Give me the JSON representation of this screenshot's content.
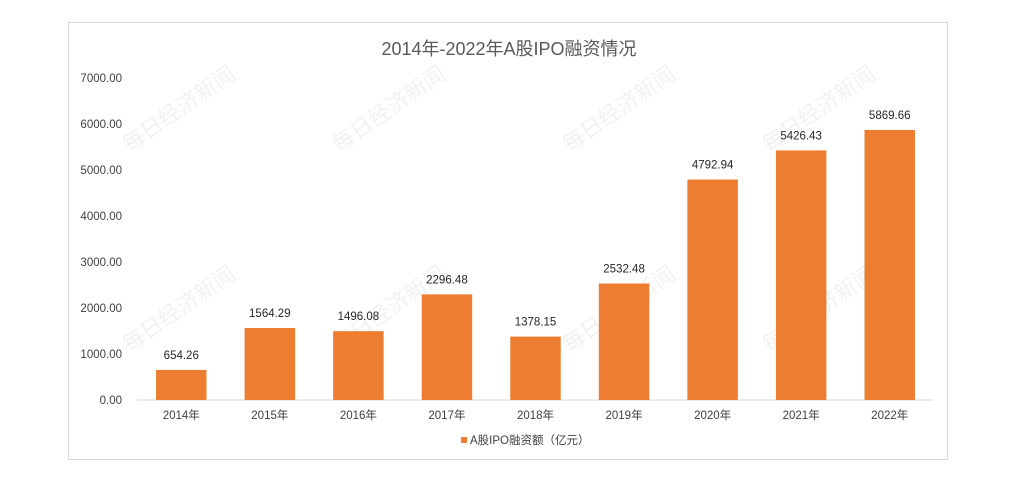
{
  "chart_data": {
    "type": "bar",
    "title": "2014年-2022年A股IPO融资情况",
    "categories": [
      "2014年",
      "2015年",
      "2016年",
      "2017年",
      "2018年",
      "2019年",
      "2020年",
      "2021年",
      "2022年"
    ],
    "series": [
      {
        "name": "A股IPO融资额（亿元）",
        "values": [
          654.26,
          1564.29,
          1496.08,
          2296.48,
          1378.15,
          2532.48,
          4792.94,
          5426.43,
          5869.66
        ],
        "labels": [
          "654.26",
          "1564.29",
          "1496.08",
          "2296.48",
          "1378.15",
          "2532.48",
          "4792.94",
          "5426.43",
          "5869.66"
        ],
        "color": "#ED7D31"
      }
    ],
    "yticks": [
      "0.00",
      "1000.00",
      "2000.00",
      "3000.00",
      "4000.00",
      "5000.00",
      "6000.00",
      "7000.00"
    ],
    "ylim": [
      0,
      7000
    ],
    "xlabel": "",
    "ylabel": "",
    "grid": false,
    "legend_position": "bottom"
  },
  "watermark": "每日经济新闻",
  "colors": {
    "axis": "#d9d9d9",
    "text": "#404040"
  }
}
